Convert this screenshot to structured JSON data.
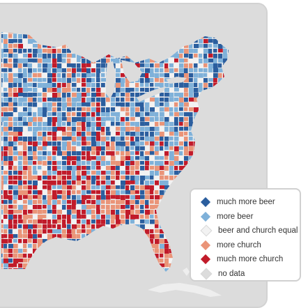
{
  "legend": {
    "items": [
      {
        "label": "much more beer",
        "color": "#2b5e9e"
      },
      {
        "label": "more beer",
        "color": "#7fb1d9"
      },
      {
        "label": "beer and church equal",
        "color": "#f2f2f2"
      },
      {
        "label": "more church",
        "color": "#ea9478"
      },
      {
        "label": "much more church",
        "color": "#c11b2a"
      },
      {
        "label": "no data",
        "color": "#dcdcdc"
      }
    ]
  },
  "colors": {
    "background": "#dcdcdc",
    "land_none": "#e8e8e8",
    "panel_border": "#d2d2d2"
  }
}
